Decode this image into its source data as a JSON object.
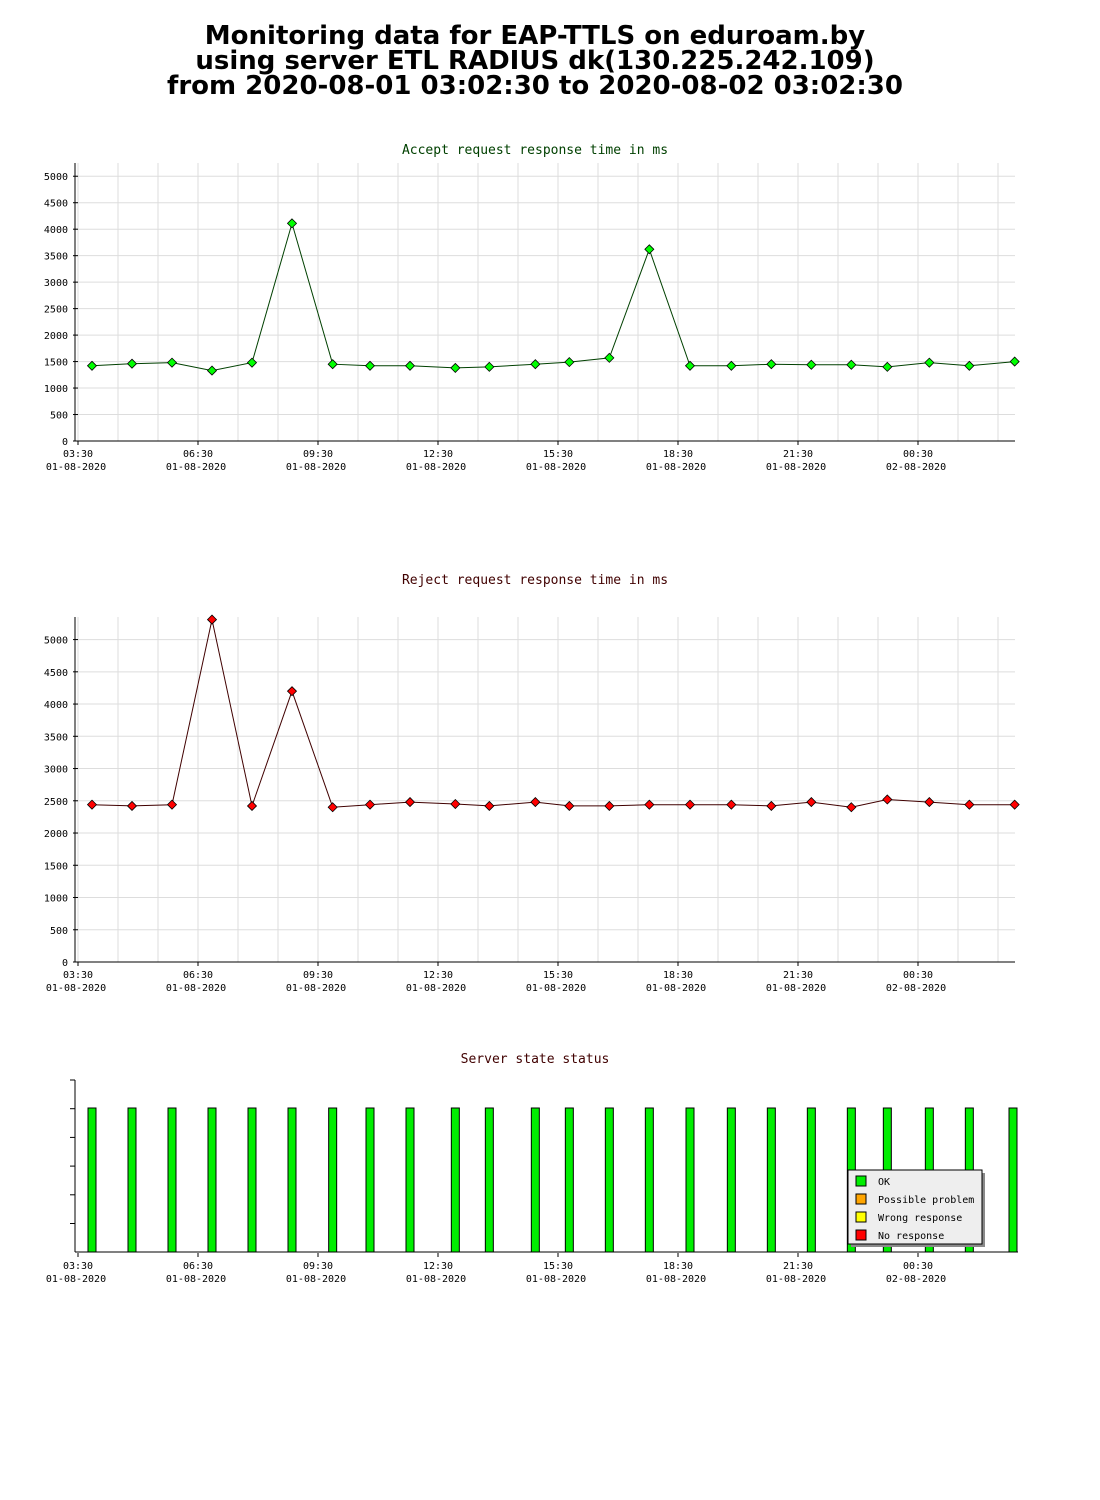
{
  "page": {
    "title_lines": [
      "Monitoring data for EAP-TTLS on eduroam.by",
      "using server ETL RADIUS dk(130.225.242.109)",
      "from 2020-08-01 03:02:30 to 2020-08-02 03:02:30"
    ]
  },
  "colors": {
    "accept_title": "#004000",
    "reject_title": "#400000",
    "status_title": "#400000",
    "accept_marker": "#00ff00",
    "accept_line": "#004000",
    "reject_marker": "#ff0000",
    "reject_line": "#400000",
    "ok": "#00ee00",
    "possible_problem": "#ffa500",
    "wrong_response": "#ffff00",
    "no_response": "#ff0000",
    "grid": "#dddddd"
  },
  "x_ticks": [
    {
      "time": "03:30",
      "date": "01-08-2020"
    },
    {
      "time": "06:30",
      "date": "01-08-2020"
    },
    {
      "time": "09:30",
      "date": "01-08-2020"
    },
    {
      "time": "12:30",
      "date": "01-08-2020"
    },
    {
      "time": "15:30",
      "date": "01-08-2020"
    },
    {
      "time": "18:30",
      "date": "01-08-2020"
    },
    {
      "time": "21:30",
      "date": "01-08-2020"
    },
    {
      "time": "00:30",
      "date": "02-08-2020"
    }
  ],
  "chart_data": [
    {
      "type": "line",
      "title": "Accept request response time in ms",
      "xlabel": "",
      "ylabel": "",
      "x_range": [
        "2020-08-01 03:30",
        "2020-08-02 03:00"
      ],
      "ylim": [
        0,
        5250
      ],
      "yticks": [
        0,
        500,
        1000,
        1500,
        2000,
        2500,
        3000,
        3500,
        4000,
        4500,
        5000
      ],
      "grid": true,
      "x": [
        "2020-08-01 03:51",
        "2020-08-01 04:51",
        "2020-08-01 05:51",
        "2020-08-01 06:51",
        "2020-08-01 07:51",
        "2020-08-01 08:51",
        "2020-08-01 09:52",
        "2020-08-01 10:48",
        "2020-08-01 11:48",
        "2020-08-01 12:56",
        "2020-08-01 13:47",
        "2020-08-01 14:56",
        "2020-08-01 15:47",
        "2020-08-01 16:47",
        "2020-08-01 17:47",
        "2020-08-01 18:48",
        "2020-08-01 19:50",
        "2020-08-01 20:50",
        "2020-08-01 21:50",
        "2020-08-01 22:50",
        "2020-08-01 23:44",
        "2020-08-02 00:47",
        "2020-08-02 01:47",
        "2020-08-02 02:55"
      ],
      "values": [
        1420,
        1460,
        1480,
        1330,
        1480,
        4110,
        1450,
        1420,
        1420,
        1380,
        1400,
        1450,
        1490,
        1570,
        3620,
        1420,
        1420,
        1450,
        1440,
        1440,
        1400,
        1480,
        1420,
        1500
      ]
    },
    {
      "type": "line",
      "title": "Reject request response time in ms",
      "xlabel": "",
      "ylabel": "",
      "x_range": [
        "2020-08-01 03:30",
        "2020-08-02 03:00"
      ],
      "ylim": [
        0,
        5350
      ],
      "yticks": [
        0,
        500,
        1000,
        1500,
        2000,
        2500,
        3000,
        3500,
        4000,
        4500,
        5000
      ],
      "grid": true,
      "x": [
        "2020-08-01 03:51",
        "2020-08-01 04:51",
        "2020-08-01 05:51",
        "2020-08-01 06:51",
        "2020-08-01 07:51",
        "2020-08-01 08:51",
        "2020-08-01 09:52",
        "2020-08-01 10:48",
        "2020-08-01 11:48",
        "2020-08-01 12:56",
        "2020-08-01 13:47",
        "2020-08-01 14:56",
        "2020-08-01 15:47",
        "2020-08-01 16:47",
        "2020-08-01 17:47",
        "2020-08-01 18:48",
        "2020-08-01 19:50",
        "2020-08-01 20:50",
        "2020-08-01 21:50",
        "2020-08-01 22:50",
        "2020-08-01 23:44",
        "2020-08-02 00:47",
        "2020-08-02 01:47",
        "2020-08-02 02:55"
      ],
      "values": [
        2440,
        2420,
        2440,
        5310,
        2420,
        4200,
        2400,
        2440,
        2480,
        2450,
        2420,
        2480,
        2420,
        2420,
        2440,
        2440,
        2440,
        2420,
        2480,
        2400,
        2520,
        2480,
        2440,
        2440
      ]
    },
    {
      "type": "bar",
      "title": "Server state status",
      "x_range": [
        "2020-08-01 03:30",
        "2020-08-02 03:00"
      ],
      "x": [
        "2020-08-01 03:51",
        "2020-08-01 04:51",
        "2020-08-01 05:51",
        "2020-08-01 06:51",
        "2020-08-01 07:51",
        "2020-08-01 08:51",
        "2020-08-01 09:52",
        "2020-08-01 10:48",
        "2020-08-01 11:48",
        "2020-08-01 12:56",
        "2020-08-01 13:47",
        "2020-08-01 14:56",
        "2020-08-01 15:47",
        "2020-08-01 16:47",
        "2020-08-01 17:47",
        "2020-08-01 18:48",
        "2020-08-01 19:50",
        "2020-08-01 20:50",
        "2020-08-01 21:50",
        "2020-08-01 22:50",
        "2020-08-01 23:44",
        "2020-08-02 00:47",
        "2020-08-02 01:47",
        "2020-08-02 02:55"
      ],
      "states": [
        "OK",
        "OK",
        "OK",
        "OK",
        "OK",
        "OK",
        "OK",
        "OK",
        "OK",
        "OK",
        "OK",
        "OK",
        "OK",
        "OK",
        "OK",
        "OK",
        "OK",
        "OK",
        "OK",
        "OK",
        "OK",
        "OK",
        "OK",
        "OK"
      ],
      "legend": [
        "OK",
        "Possible problem",
        "Wrong response",
        "No response"
      ],
      "legend_placement": "bottom-right"
    }
  ]
}
